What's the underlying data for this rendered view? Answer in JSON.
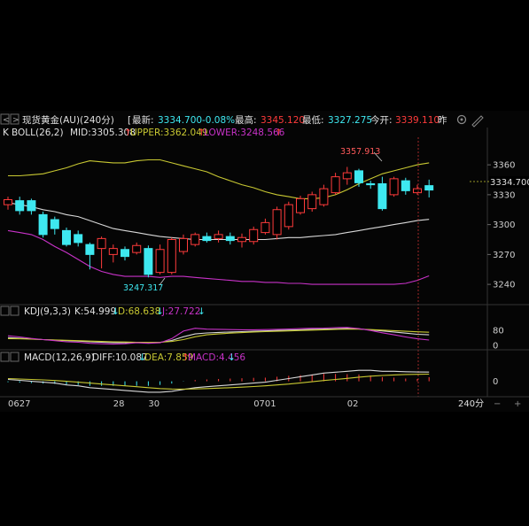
{
  "header": {
    "title": "现货黄金(AU)(240分)",
    "latest_label": "最新:",
    "latest_value": "3334.700",
    "change_pct": "-0.08%",
    "high_label": "最高:",
    "high_value": "3345.120",
    "low_label": "最低:",
    "low_value": "3327.275",
    "open_label": "今开:",
    "open_value": "3339.110",
    "more_glyph": "昨"
  },
  "indicators": {
    "boll": {
      "k_label": "K",
      "name": "BOLL(26,2)",
      "mid": "MID:3305.308",
      "upper": "UPPER:3362.049",
      "lower": "LOWER:3248.566"
    },
    "kdj": {
      "name": "KDJ(9,3,3)",
      "k": "K:54.999",
      "d": "D:68.638",
      "j": "J:27.722"
    },
    "macd": {
      "name": "MACD(12,26,9)",
      "diff": "DIFF:10.087",
      "dea": "DEA:7.859",
      "macd": "MACD:4.456"
    }
  },
  "annotations": {
    "high_label": "3357.913",
    "low_label": "3247.317",
    "price_tag": "3334.700"
  },
  "timeframe": "240分",
  "colors": {
    "up": "#ff3b3b",
    "down": "#3ee8f0",
    "upper": "#c8c832",
    "mid": "#d8d8d8",
    "lower": "#c832c8"
  },
  "chart_data": {
    "type": "candlestick",
    "xlabels": [
      {
        "label": "0627",
        "index": 0
      },
      {
        "label": "28",
        "index": 9
      },
      {
        "label": "30",
        "index": 12
      },
      {
        "label": "0701",
        "index": 21
      },
      {
        "label": "02",
        "index": 29
      }
    ],
    "price_axis": {
      "ylim": [
        3225,
        3385
      ],
      "ticks": [
        3240,
        3270,
        3300,
        3330,
        3360
      ]
    },
    "kdj_axis": {
      "ylim": [
        -10,
        140
      ],
      "ticks": [
        0,
        80
      ]
    },
    "macd_axis": {
      "ylim": [
        -15,
        20
      ],
      "ticks": [
        0
      ]
    },
    "candles": [
      {
        "o": 3320,
        "c": 3325,
        "h": 3328,
        "l": 3315
      },
      {
        "o": 3324,
        "c": 3314,
        "h": 3328,
        "l": 3310
      },
      {
        "o": 3324,
        "c": 3314,
        "h": 3326,
        "l": 3310
      },
      {
        "o": 3310,
        "c": 3290,
        "h": 3313,
        "l": 3287
      },
      {
        "o": 3305,
        "c": 3296,
        "h": 3308,
        "l": 3290
      },
      {
        "o": 3294,
        "c": 3280,
        "h": 3297,
        "l": 3278
      },
      {
        "o": 3290,
        "c": 3282,
        "h": 3294,
        "l": 3278
      },
      {
        "o": 3280,
        "c": 3270,
        "h": 3282,
        "l": 3255
      },
      {
        "o": 3276,
        "c": 3286,
        "h": 3288,
        "l": 3256
      },
      {
        "o": 3270,
        "c": 3276,
        "h": 3280,
        "l": 3262
      },
      {
        "o": 3275,
        "c": 3268,
        "h": 3278,
        "l": 3264
      },
      {
        "o": 3272,
        "c": 3279,
        "h": 3282,
        "l": 3270
      },
      {
        "o": 3276,
        "c": 3250,
        "h": 3279,
        "l": 3247
      },
      {
        "o": 3252,
        "c": 3275,
        "h": 3280,
        "l": 3250
      },
      {
        "o": 3252,
        "c": 3285,
        "h": 3287,
        "l": 3250
      },
      {
        "o": 3273,
        "c": 3286,
        "h": 3290,
        "l": 3270
      },
      {
        "o": 3280,
        "c": 3290,
        "h": 3292,
        "l": 3278
      },
      {
        "o": 3288,
        "c": 3284,
        "h": 3292,
        "l": 3282
      },
      {
        "o": 3286,
        "c": 3290,
        "h": 3294,
        "l": 3282
      },
      {
        "o": 3288,
        "c": 3284,
        "h": 3292,
        "l": 3280
      },
      {
        "o": 3283,
        "c": 3287,
        "h": 3291,
        "l": 3277
      },
      {
        "o": 3283,
        "c": 3295,
        "h": 3298,
        "l": 3280
      },
      {
        "o": 3292,
        "c": 3302,
        "h": 3306,
        "l": 3290
      },
      {
        "o": 3290,
        "c": 3315,
        "h": 3318,
        "l": 3285
      },
      {
        "o": 3298,
        "c": 3320,
        "h": 3323,
        "l": 3295
      },
      {
        "o": 3312,
        "c": 3326,
        "h": 3329,
        "l": 3310
      },
      {
        "o": 3316,
        "c": 3330,
        "h": 3333,
        "l": 3313
      },
      {
        "o": 3320,
        "c": 3336,
        "h": 3340,
        "l": 3318
      },
      {
        "o": 3332,
        "c": 3348,
        "h": 3352,
        "l": 3330
      },
      {
        "o": 3346,
        "c": 3352,
        "h": 3357.9,
        "l": 3340
      },
      {
        "o": 3354,
        "c": 3342,
        "h": 3356,
        "l": 3338
      },
      {
        "o": 3341,
        "c": 3340,
        "h": 3344,
        "l": 3336
      },
      {
        "o": 3341,
        "c": 3316,
        "h": 3348,
        "l": 3314
      },
      {
        "o": 3330,
        "c": 3346,
        "h": 3348,
        "l": 3328
      },
      {
        "o": 3344,
        "c": 3334,
        "h": 3347,
        "l": 3330
      },
      {
        "o": 3332,
        "c": 3336,
        "h": 3340,
        "l": 3330
      },
      {
        "o": 3339.11,
        "c": 3334.7,
        "h": 3345.12,
        "l": 3327.28
      }
    ],
    "upper": [
      3349,
      3349,
      3350,
      3351,
      3354,
      3357,
      3361,
      3364,
      3363,
      3362,
      3362,
      3364,
      3365,
      3365,
      3362,
      3359,
      3356,
      3353,
      3348,
      3344,
      3340,
      3337,
      3333,
      3330,
      3328,
      3326,
      3326,
      3327,
      3330,
      3335,
      3341,
      3346,
      3351,
      3354,
      3357,
      3360,
      3362
    ],
    "mid": [
      3322,
      3320,
      3318,
      3315,
      3313,
      3310,
      3308,
      3304,
      3300,
      3296,
      3294,
      3292,
      3290,
      3288,
      3287,
      3286,
      3285,
      3285,
      3285,
      3285,
      3285,
      3285,
      3285,
      3286,
      3287,
      3287,
      3288,
      3289,
      3290,
      3292,
      3294,
      3296,
      3298,
      3300,
      3302,
      3304,
      3305.3
    ],
    "lower": [
      3294,
      3292,
      3290,
      3285,
      3278,
      3272,
      3265,
      3258,
      3253,
      3250,
      3248,
      3248,
      3248,
      3247,
      3248,
      3248,
      3247,
      3246,
      3245,
      3244,
      3243,
      3243,
      3242,
      3242,
      3241,
      3241,
      3240,
      3240,
      3240,
      3240,
      3240,
      3240,
      3240,
      3240,
      3241,
      3244,
      3248.6
    ],
    "kdj": {
      "k": [
        40,
        37,
        33,
        30,
        27,
        24,
        22,
        18,
        16,
        14,
        14,
        15,
        13,
        15,
        25,
        45,
        60,
        65,
        68,
        70,
        72,
        74,
        76,
        78,
        80,
        82,
        84,
        85,
        87,
        88,
        86,
        82,
        76,
        70,
        64,
        58,
        55
      ],
      "d": [
        35,
        34,
        32,
        30,
        28,
        26,
        24,
        22,
        20,
        18,
        17,
        16,
        15,
        16,
        20,
        30,
        45,
        55,
        60,
        64,
        67,
        70,
        72,
        74,
        76,
        78,
        80,
        82,
        84,
        85,
        85,
        83,
        80,
        77,
        74,
        71,
        68.6
      ],
      "j": [
        50,
        44,
        36,
        30,
        24,
        18,
        16,
        10,
        8,
        6,
        8,
        13,
        10,
        13,
        35,
        75,
        90,
        85,
        84,
        83,
        82,
        82,
        83,
        84,
        86,
        88,
        90,
        91,
        93,
        94,
        88,
        78,
        66,
        55,
        44,
        34,
        27.7
      ]
    },
    "macd": {
      "diff": [
        2,
        1,
        0,
        -1,
        -2,
        -4,
        -5,
        -7,
        -8,
        -9,
        -10,
        -11,
        -12,
        -12,
        -11,
        -9,
        -7,
        -6,
        -5,
        -4,
        -3,
        -2,
        -1,
        1,
        3,
        5,
        7,
        9,
        10,
        11,
        12,
        12,
        11,
        11,
        10.5,
        10.2,
        10.1
      ],
      "dea": [
        3,
        2.5,
        2,
        1.5,
        0.8,
        0,
        -1,
        -2,
        -3,
        -4,
        -5,
        -6,
        -7,
        -8,
        -8.5,
        -8.6,
        -8.4,
        -8,
        -7.5,
        -7,
        -6.4,
        -5.8,
        -5,
        -4,
        -3,
        -1.8,
        -0.5,
        0.8,
        2,
        3.2,
        4.5,
        5.6,
        6.4,
        7,
        7.5,
        7.7,
        7.86
      ],
      "hist": [
        -1,
        -1.5,
        -2,
        -2.5,
        -2.8,
        -4,
        -4,
        -5,
        -5,
        -5,
        -5,
        -5,
        -5,
        -4,
        -2.5,
        -0.4,
        1.4,
        2,
        2.5,
        3,
        3.4,
        3.8,
        4,
        5,
        6,
        6.8,
        7.5,
        8.2,
        8,
        7.8,
        7.5,
        6.4,
        4.6,
        4,
        3,
        2.5,
        4.456
      ]
    }
  }
}
